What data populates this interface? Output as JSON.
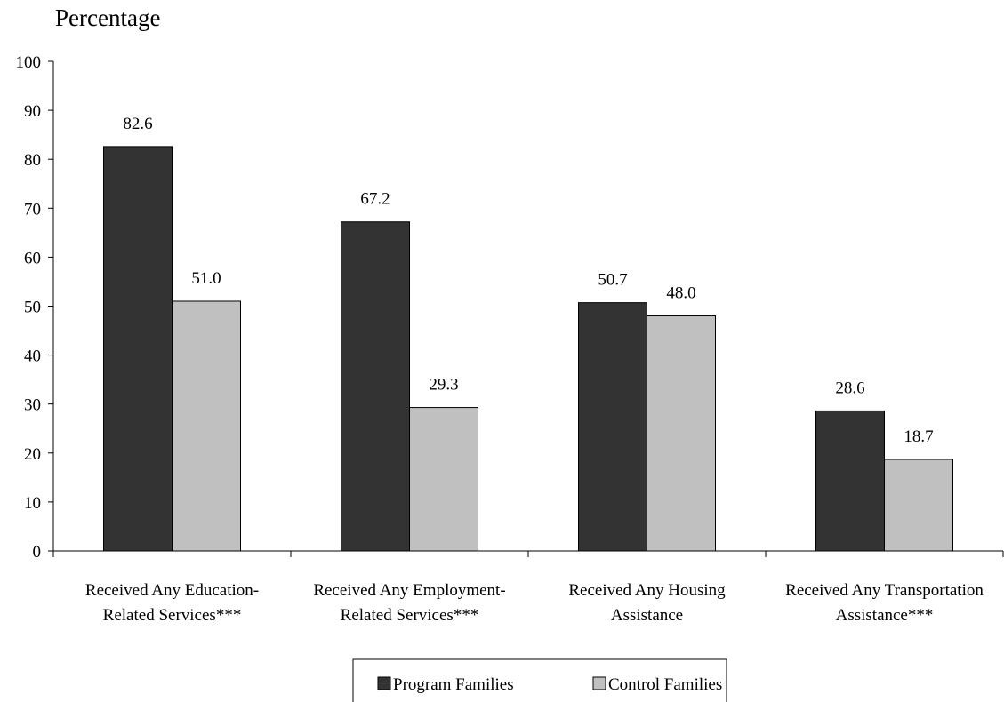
{
  "chart_data": {
    "type": "bar",
    "ylabel": "Percentage",
    "ylim": [
      0,
      100
    ],
    "yticks": [
      0,
      10,
      20,
      30,
      40,
      50,
      60,
      70,
      80,
      90,
      100
    ],
    "categories": [
      [
        "Received Any Education-",
        "Related Services***"
      ],
      [
        "Received Any Employment-",
        "Related Services***"
      ],
      [
        "Received Any Housing",
        "Assistance"
      ],
      [
        "Received Any Transportation",
        "Assistance***"
      ]
    ],
    "series": [
      {
        "name": "Program Families",
        "color": "#333333",
        "values": [
          82.6,
          67.2,
          50.7,
          28.6
        ],
        "labels": [
          "82.6",
          "67.2",
          "50.7",
          "28.6"
        ]
      },
      {
        "name": "Control Families",
        "color": "#c0c0c0",
        "values": [
          51.0,
          29.3,
          48.0,
          18.7
        ],
        "labels": [
          "51.0",
          "29.3",
          "48.0",
          "18.7"
        ]
      }
    ],
    "grid": false,
    "legend_position": "bottom-center"
  }
}
